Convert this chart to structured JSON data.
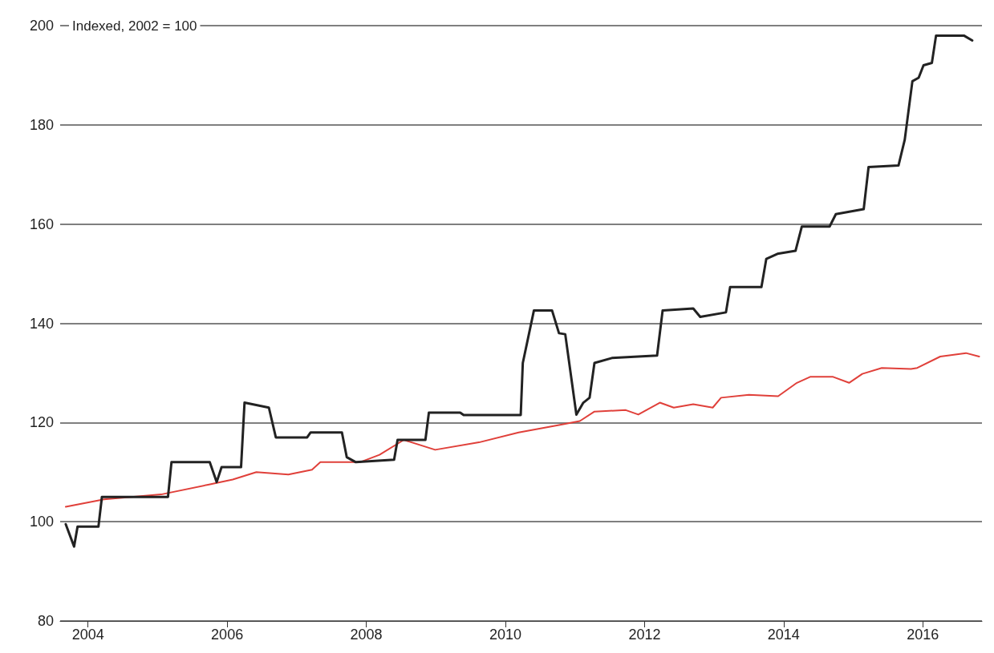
{
  "chart_data": {
    "type": "line",
    "ylabel": "Indexed, 2002 = 100",
    "xlim": [
      2003.6,
      2016.85
    ],
    "xticks": [
      2004,
      2006,
      2008,
      2010,
      2012,
      2014,
      2016
    ],
    "ylim": [
      80,
      200
    ],
    "yticks": [
      80,
      100,
      120,
      140,
      160,
      180,
      200
    ],
    "grid": "y",
    "marker": "none",
    "line_style": "solid",
    "series": [
      {
        "color": "#222222",
        "x": [
          2003.68,
          2003.8,
          2003.85,
          2004.15,
          2004.2,
          2005.15,
          2005.2,
          2005.75,
          2005.85,
          2005.92,
          2006.2,
          2006.25,
          2006.6,
          2006.7,
          2007.15,
          2007.2,
          2007.65,
          2007.72,
          2007.85,
          2008.4,
          2008.45,
          2008.85,
          2008.9,
          2009.35,
          2009.4,
          2010.22,
          2010.25,
          2010.41,
          2010.67,
          2010.77,
          2010.86,
          2011.02,
          2011.12,
          2011.21,
          2011.28,
          2011.53,
          2012.18,
          2012.26,
          2012.7,
          2012.8,
          2013.17,
          2013.23,
          2013.68,
          2013.75,
          2013.91,
          2014.17,
          2014.26,
          2014.66,
          2014.75,
          2015.15,
          2015.22,
          2015.65,
          2015.74,
          2015.85,
          2015.94,
          2016.01,
          2016.13,
          2016.19,
          2016.59,
          2016.71
        ],
        "values": [
          99.5,
          95,
          99,
          99,
          105,
          105,
          112,
          112,
          108,
          111,
          111,
          124,
          123,
          117,
          117,
          118,
          118,
          113,
          112,
          112.5,
          116.5,
          116.5,
          122,
          122,
          121.5,
          121.5,
          132,
          142.6,
          142.6,
          138,
          137.8,
          121.6,
          124,
          125,
          132,
          133,
          133.5,
          142.6,
          143,
          141.3,
          142.2,
          147.3,
          147.3,
          153,
          154,
          154.6,
          159.5,
          159.5,
          162,
          163,
          171.5,
          171.8,
          177,
          188.8,
          189.5,
          192,
          192.5,
          198,
          198,
          197
        ]
      },
      {
        "color": "#e0403a",
        "x": [
          2003.68,
          2004.23,
          2005.05,
          2005.74,
          2006.08,
          2006.42,
          2006.88,
          2007.22,
          2007.34,
          2007.91,
          2008.19,
          2008.54,
          2008.99,
          2009.62,
          2010.19,
          2010.77,
          2011.07,
          2011.28,
          2011.73,
          2011.91,
          2012.22,
          2012.42,
          2012.7,
          2012.98,
          2013.1,
          2013.5,
          2013.92,
          2014.19,
          2014.38,
          2014.71,
          2014.94,
          2015.13,
          2015.41,
          2015.83,
          2015.92,
          2016.25,
          2016.62,
          2016.81
        ],
        "values": [
          103,
          104.5,
          105.5,
          107.5,
          108.5,
          110,
          109.5,
          110.5,
          112,
          112,
          113.5,
          116.5,
          114.5,
          116,
          118,
          119.5,
          120.3,
          122.2,
          122.5,
          121.6,
          124,
          123,
          123.7,
          123,
          125,
          125.6,
          125.3,
          128,
          129.2,
          129.2,
          128,
          129.8,
          131,
          130.8,
          131,
          133.3,
          134,
          133.3
        ]
      }
    ]
  }
}
